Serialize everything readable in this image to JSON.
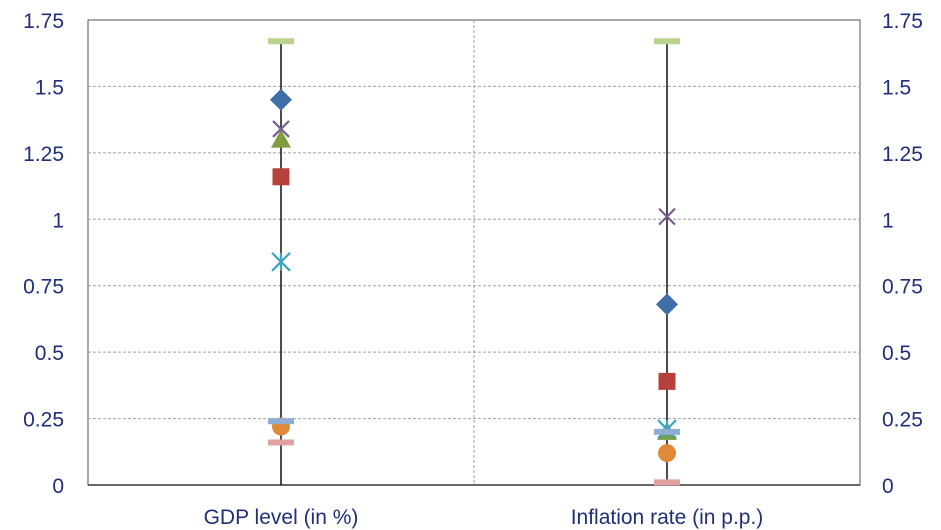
{
  "chart_data": {
    "type": "scatter",
    "categories": [
      "GDP level (in %)",
      "Inflation rate (in p.p.)"
    ],
    "ylim": [
      0,
      1.75
    ],
    "y_ticks": [
      "0",
      "0.25",
      "0.5",
      "0.75",
      "1",
      "1.25",
      "1.5",
      "1.75"
    ],
    "y_tick_values": [
      0,
      0.25,
      0.5,
      0.75,
      1,
      1.25,
      1.5,
      1.75
    ],
    "grid": true,
    "range_lines": [
      {
        "category": "GDP level (in %)",
        "min": 0.0,
        "max": 1.67
      },
      {
        "category": "Inflation rate (in p.p.)",
        "min": 0.0,
        "max": 1.67
      }
    ],
    "series": [
      {
        "marker": "diamond",
        "color": "#3f6ea8",
        "values": [
          1.45,
          0.68
        ]
      },
      {
        "marker": "square",
        "color": "#b5413a",
        "values": [
          1.16,
          0.39
        ]
      },
      {
        "marker": "triangle",
        "color": "#7f9d3c",
        "values": [
          1.3,
          0.2
        ]
      },
      {
        "marker": "x",
        "color": "#7b5c96",
        "values": [
          1.34,
          1.01
        ]
      },
      {
        "marker": "star",
        "color": "#3fa4c2",
        "values": [
          0.84,
          0.21
        ]
      },
      {
        "marker": "circle",
        "color": "#e08a37",
        "values": [
          0.22,
          0.12
        ]
      },
      {
        "marker": "dash",
        "color": "#8eaed6",
        "values": [
          0.24,
          0.2
        ]
      },
      {
        "marker": "dash",
        "color": "#e0a2a0",
        "values": [
          0.16,
          0.01
        ]
      },
      {
        "marker": "dash",
        "color": "#b9d38a",
        "values": [
          1.67,
          1.67
        ]
      }
    ]
  }
}
